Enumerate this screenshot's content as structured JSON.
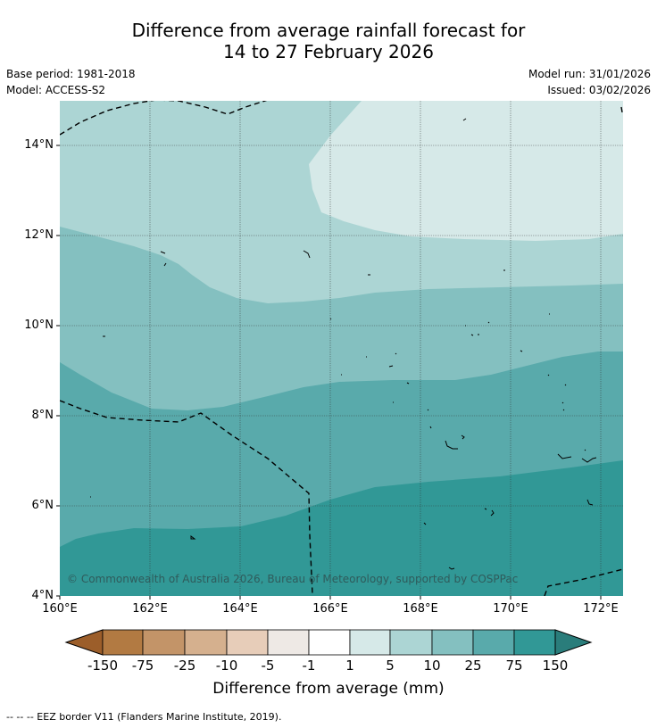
{
  "title_line1": "Difference from average rainfall forecast for",
  "title_line2": "14 to 27 February 2026",
  "base_period": "Base period: 1981-2018",
  "model": "Model: ACCESS-S2",
  "model_run": "Model run: 31/01/2026",
  "issued": "Issued: 03/02/2026",
  "copyright": "© Commonwealth of Australia 2026, Bureau of Meteorology, supported by COSPPac",
  "lat_labels": [
    "14°N",
    "12°N",
    "10°N",
    "8°N",
    "6°N",
    "4°N"
  ],
  "lon_labels": [
    "160°E",
    "162°E",
    "164°E",
    "166°E",
    "168°E",
    "170°E",
    "172°E"
  ],
  "colorbar": {
    "labels": [
      "-150",
      "-75",
      "-25",
      "-10",
      "-5",
      "-1",
      "1",
      "5",
      "10",
      "25",
      "75",
      "150"
    ],
    "title": "Difference from average (mm)",
    "colors": [
      "#9c5e2a",
      "#b27a42",
      "#c39468",
      "#d5b08e",
      "#e7cdb9",
      "#eee9e5",
      "#ffffff",
      "#d6e9e8",
      "#acd5d4",
      "#84c0c0",
      "#59aaab",
      "#319896",
      "#2a7d7b"
    ]
  },
  "footer": "--  --  -- EEZ border V11 (Flanders Marine Institute, 2019).",
  "map_colors": {
    "band_1_5": "#d6e9e8",
    "band_5_10": "#acd5d4",
    "band_10_25": "#84c0c0",
    "band_25_75": "#59aaab",
    "band_75_150": "#319896"
  }
}
